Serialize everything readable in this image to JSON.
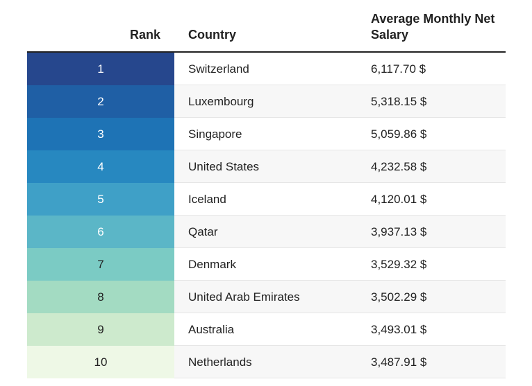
{
  "chart_data": {
    "type": "table",
    "columns": [
      "Rank",
      "Country",
      "Average Monthly Net Salary"
    ],
    "rows": [
      {
        "rank": "1",
        "country": "Switzerland",
        "salary": "6,117.70 $",
        "rank_color": "#26478d",
        "text_color": "#ffffff"
      },
      {
        "rank": "2",
        "country": "Luxembourg",
        "salary": "5,318.15 $",
        "rank_color": "#1f5fa5",
        "text_color": "#ffffff"
      },
      {
        "rank": "3",
        "country": "Singapore",
        "salary": "5,059.86 $",
        "rank_color": "#1e73b5",
        "text_color": "#ffffff"
      },
      {
        "rank": "4",
        "country": "United States",
        "salary": "4,232.58 $",
        "rank_color": "#2788c0",
        "text_color": "#ffffff"
      },
      {
        "rank": "5",
        "country": "Iceland",
        "salary": "4,120.01 $",
        "rank_color": "#3fa0c7",
        "text_color": "#ffffff"
      },
      {
        "rank": "6",
        "country": "Qatar",
        "salary": "3,937.13 $",
        "rank_color": "#5bb6c7",
        "text_color": "#ffffff"
      },
      {
        "rank": "7",
        "country": "Denmark",
        "salary": "3,529.32 $",
        "rank_color": "#7bcbc4",
        "text_color": "#222222"
      },
      {
        "rank": "8",
        "country": "United Arab Emirates",
        "salary": "3,502.29 $",
        "rank_color": "#a3dbc2",
        "text_color": "#222222"
      },
      {
        "rank": "9",
        "country": "Australia",
        "salary": "3,493.01 $",
        "rank_color": "#cdeacd",
        "text_color": "#222222"
      },
      {
        "rank": "10",
        "country": "Netherlands",
        "salary": "3,487.91 $",
        "rank_color": "#eef8e6",
        "text_color": "#222222"
      }
    ]
  }
}
